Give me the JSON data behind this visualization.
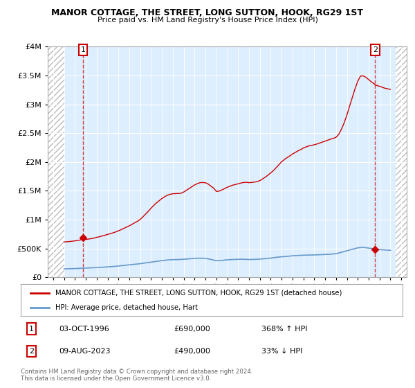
{
  "title": "MANOR COTTAGE, THE STREET, LONG SUTTON, HOOK, RG29 1ST",
  "subtitle": "Price paid vs. HM Land Registry's House Price Index (HPI)",
  "legend_line1": "MANOR COTTAGE, THE STREET, LONG SUTTON, HOOK, RG29 1ST (detached house)",
  "legend_line2": "HPI: Average price, detached house, Hart",
  "footnote": "Contains HM Land Registry data © Crown copyright and database right 2024.\nThis data is licensed under the Open Government Licence v3.0.",
  "annotation1_label": "1",
  "annotation1_date": "03-OCT-1996",
  "annotation1_price": "£690,000",
  "annotation1_hpi": "368% ↑ HPI",
  "annotation2_label": "2",
  "annotation2_date": "09-AUG-2023",
  "annotation2_price": "£490,000",
  "annotation2_hpi": "33% ↓ HPI",
  "red_color": "#cc0000",
  "blue_color": "#6699cc",
  "bg_color": "#ddeeff",
  "ylim": [
    0,
    4000000
  ],
  "xlim_start": 1993.5,
  "xlim_end": 2026.5,
  "data_start_year": 1995.0,
  "data_end_year": 2025.5,
  "sale1_year": 1996.75,
  "sale1_price": 690000,
  "sale2_year": 2023.6,
  "sale2_price": 490000,
  "hpi_years": [
    1995.0,
    1995.25,
    1995.5,
    1995.75,
    1996.0,
    1996.25,
    1996.5,
    1996.75,
    1997.0,
    1997.25,
    1997.5,
    1997.75,
    1998.0,
    1998.25,
    1998.5,
    1998.75,
    1999.0,
    1999.25,
    1999.5,
    1999.75,
    2000.0,
    2000.25,
    2000.5,
    2000.75,
    2001.0,
    2001.25,
    2001.5,
    2001.75,
    2002.0,
    2002.25,
    2002.5,
    2002.75,
    2003.0,
    2003.25,
    2003.5,
    2003.75,
    2004.0,
    2004.25,
    2004.5,
    2004.75,
    2005.0,
    2005.25,
    2005.5,
    2005.75,
    2006.0,
    2006.25,
    2006.5,
    2006.75,
    2007.0,
    2007.25,
    2007.5,
    2007.75,
    2008.0,
    2008.25,
    2008.5,
    2008.75,
    2009.0,
    2009.25,
    2009.5,
    2009.75,
    2010.0,
    2010.25,
    2010.5,
    2010.75,
    2011.0,
    2011.25,
    2011.5,
    2011.75,
    2012.0,
    2012.25,
    2012.5,
    2012.75,
    2013.0,
    2013.25,
    2013.5,
    2013.75,
    2014.0,
    2014.25,
    2014.5,
    2014.75,
    2015.0,
    2015.25,
    2015.5,
    2015.75,
    2016.0,
    2016.25,
    2016.5,
    2016.75,
    2017.0,
    2017.25,
    2017.5,
    2017.75,
    2018.0,
    2018.25,
    2018.5,
    2018.75,
    2019.0,
    2019.25,
    2019.5,
    2019.75,
    2020.0,
    2020.25,
    2020.5,
    2020.75,
    2021.0,
    2021.25,
    2021.5,
    2021.75,
    2022.0,
    2022.25,
    2022.5,
    2022.75,
    2023.0,
    2023.25,
    2023.5,
    2023.6,
    2024.0,
    2024.25,
    2024.5,
    2025.0
  ],
  "hpi_scaled_values": [
    615000,
    618000,
    622000,
    628000,
    633000,
    640000,
    648000,
    690000,
    658000,
    665000,
    672000,
    682000,
    695000,
    705000,
    718000,
    730000,
    745000,
    758000,
    772000,
    788000,
    808000,
    828000,
    850000,
    872000,
    895000,
    920000,
    948000,
    972000,
    1005000,
    1050000,
    1098000,
    1148000,
    1200000,
    1248000,
    1292000,
    1330000,
    1368000,
    1398000,
    1425000,
    1440000,
    1450000,
    1452000,
    1455000,
    1458000,
    1480000,
    1510000,
    1540000,
    1572000,
    1602000,
    1625000,
    1642000,
    1645000,
    1640000,
    1618000,
    1582000,
    1548000,
    1490000,
    1495000,
    1515000,
    1538000,
    1562000,
    1580000,
    1598000,
    1610000,
    1622000,
    1635000,
    1645000,
    1648000,
    1642000,
    1645000,
    1652000,
    1660000,
    1678000,
    1705000,
    1738000,
    1772000,
    1812000,
    1852000,
    1902000,
    1952000,
    2005000,
    2042000,
    2075000,
    2105000,
    2138000,
    2165000,
    2192000,
    2215000,
    2242000,
    2262000,
    2278000,
    2288000,
    2298000,
    2312000,
    2328000,
    2345000,
    2362000,
    2378000,
    2395000,
    2410000,
    2428000,
    2478000,
    2568000,
    2678000,
    2812000,
    2968000,
    3118000,
    3268000,
    3398000,
    3488000,
    3492000,
    3468000,
    3428000,
    3388000,
    3358000,
    3335000,
    3312000,
    3295000,
    3278000,
    3258000
  ],
  "hpi_avg_years": [
    1995.0,
    1995.5,
    1996.0,
    1996.5,
    1997.0,
    1997.5,
    1998.0,
    1998.5,
    1999.0,
    1999.5,
    2000.0,
    2000.5,
    2001.0,
    2001.5,
    2002.0,
    2002.5,
    2003.0,
    2003.5,
    2004.0,
    2004.5,
    2005.0,
    2005.5,
    2006.0,
    2006.5,
    2007.0,
    2007.5,
    2008.0,
    2008.5,
    2009.0,
    2009.5,
    2010.0,
    2010.5,
    2011.0,
    2011.5,
    2012.0,
    2012.5,
    2013.0,
    2013.5,
    2014.0,
    2014.5,
    2015.0,
    2015.5,
    2016.0,
    2016.5,
    2017.0,
    2017.5,
    2018.0,
    2018.5,
    2019.0,
    2019.5,
    2020.0,
    2020.5,
    2021.0,
    2021.5,
    2022.0,
    2022.5,
    2023.0,
    2023.5,
    2024.0,
    2024.5,
    2025.0
  ],
  "hpi_avg_values": [
    148000,
    150000,
    154000,
    158000,
    162000,
    166000,
    171000,
    176000,
    182000,
    189000,
    198000,
    208000,
    218000,
    228000,
    238000,
    252000,
    265000,
    278000,
    292000,
    302000,
    308000,
    310000,
    315000,
    322000,
    330000,
    334000,
    330000,
    312000,
    290000,
    295000,
    305000,
    310000,
    314000,
    315000,
    310000,
    312000,
    318000,
    325000,
    335000,
    348000,
    358000,
    365000,
    375000,
    380000,
    385000,
    387000,
    390000,
    393000,
    398000,
    402000,
    412000,
    435000,
    462000,
    488000,
    512000,
    522000,
    508000,
    495000,
    482000,
    476000,
    470000
  ]
}
